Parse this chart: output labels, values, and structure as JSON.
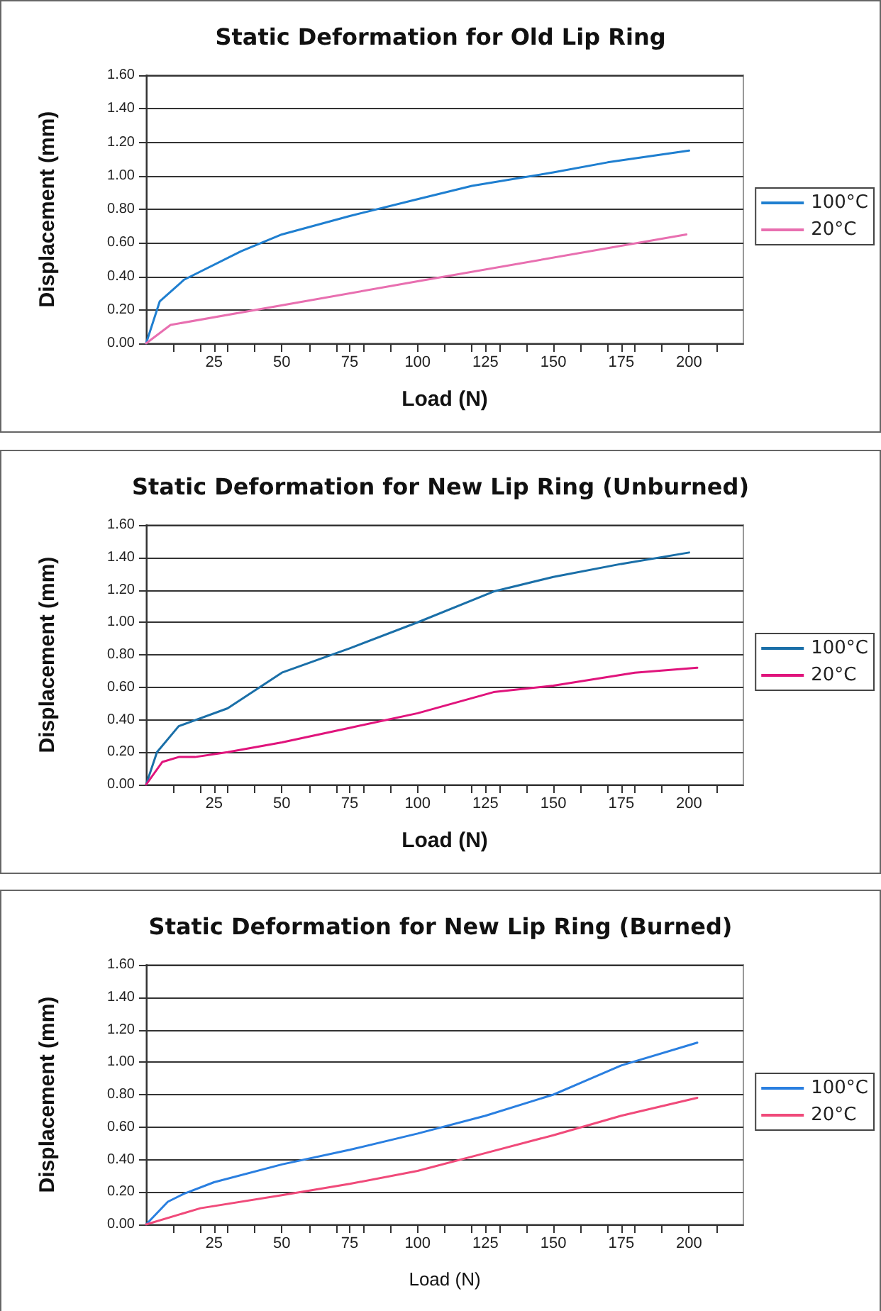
{
  "chart_data": [
    {
      "type": "line",
      "title": "Static Deformation for Old Lip Ring",
      "xlabel": "Load (N)",
      "ylabel": "Displacement (mm)",
      "xlim": [
        0,
        220
      ],
      "xticks": [
        25,
        50,
        75,
        100,
        125,
        150,
        175,
        200
      ],
      "ylim": [
        0,
        1.6
      ],
      "yticks": [
        {
          "value": 0,
          "label": "0.00"
        },
        {
          "value": 0.2,
          "label": "0.20"
        },
        {
          "value": 0.4,
          "label": "0.40"
        },
        {
          "value": 0.6,
          "label": "0.60"
        },
        {
          "value": 0.8,
          "label": "0.80"
        },
        {
          "value": 1,
          "label": "1.00"
        },
        {
          "value": 1.2,
          "label": "1.20"
        },
        {
          "value": 1.4,
          "label": "1.40"
        },
        {
          "value": 1.6,
          "label": "1.60"
        }
      ],
      "grid": "y",
      "legend": "right",
      "marker": "none",
      "line_style": "solid",
      "series": [
        {
          "name": "100°C",
          "color": "#1f7fd0",
          "x": [
            0,
            5,
            14,
            35,
            50,
            75,
            100,
            120,
            150,
            170,
            200
          ],
          "values": [
            0,
            0.25,
            0.38,
            0.55,
            0.65,
            0.76,
            0.86,
            0.94,
            1.02,
            1.08,
            1.15
          ]
        },
        {
          "name": "20°C",
          "color": "#e86fb0",
          "x": [
            0,
            9,
            100,
            199
          ],
          "values": [
            0,
            0.11,
            0.37,
            0.65
          ]
        }
      ]
    },
    {
      "type": "line",
      "title": "Static Deformation for New Lip Ring (Unburned)",
      "xlabel": "Load (N)",
      "ylabel": "Displacement (mm)",
      "xlim": [
        0,
        220
      ],
      "xticks": [
        25,
        50,
        75,
        100,
        125,
        150,
        175,
        200
      ],
      "ylim": [
        0,
        1.6
      ],
      "yticks": [
        {
          "value": 0,
          "label": "0.00"
        },
        {
          "value": 0.2,
          "label": "0.20"
        },
        {
          "value": 0.4,
          "label": "0.40"
        },
        {
          "value": 0.6,
          "label": "0.60"
        },
        {
          "value": 0.8,
          "label": "0.80"
        },
        {
          "value": 1,
          "label": "1.00"
        },
        {
          "value": 1.2,
          "label": "1.20"
        },
        {
          "value": 1.4,
          "label": "1.40"
        },
        {
          "value": 1.6,
          "label": "1.60"
        }
      ],
      "grid": "y",
      "legend": "right",
      "marker": "none",
      "line_style": "solid",
      "series": [
        {
          "name": "100°C",
          "color": "#1a6fa8",
          "x": [
            0,
            4,
            12,
            30,
            50,
            75,
            100,
            128,
            150,
            175,
            200
          ],
          "values": [
            0,
            0.2,
            0.36,
            0.47,
            0.69,
            0.84,
            1.0,
            1.19,
            1.28,
            1.36,
            1.43
          ]
        },
        {
          "name": "20°C",
          "color": "#e0147c",
          "x": [
            0,
            6,
            12,
            18,
            30,
            50,
            75,
            100,
            128,
            150,
            180,
            203
          ],
          "values": [
            0,
            0.14,
            0.17,
            0.17,
            0.2,
            0.26,
            0.35,
            0.44,
            0.57,
            0.61,
            0.69,
            0.72
          ]
        }
      ]
    },
    {
      "type": "line",
      "title": "Static Deformation for New Lip Ring (Burned)",
      "xlabel": "Load (N)",
      "ylabel": "Displacement (mm)",
      "xlim": [
        0,
        220
      ],
      "xticks": [
        25,
        50,
        75,
        100,
        125,
        150,
        175,
        200
      ],
      "ylim": [
        0,
        1.6
      ],
      "yticks": [
        {
          "value": 0,
          "label": "0.00"
        },
        {
          "value": 0.2,
          "label": "0.20"
        },
        {
          "value": 0.4,
          "label": "0.40"
        },
        {
          "value": 0.6,
          "label": "0.60"
        },
        {
          "value": 0.8,
          "label": "0.80"
        },
        {
          "value": 1,
          "label": "1.00"
        },
        {
          "value": 1.2,
          "label": "1.20"
        },
        {
          "value": 1.4,
          "label": "1.40"
        },
        {
          "value": 1.6,
          "label": "1.60"
        }
      ],
      "grid": "y",
      "legend": "right",
      "marker": "none",
      "line_style": "solid",
      "series": [
        {
          "name": "100°C",
          "color": "#2a7fe0",
          "x": [
            0,
            8,
            14,
            25,
            50,
            75,
            100,
            125,
            150,
            175,
            203
          ],
          "values": [
            0,
            0.14,
            0.19,
            0.26,
            0.37,
            0.46,
            0.56,
            0.67,
            0.8,
            0.98,
            1.12
          ]
        },
        {
          "name": "20°C",
          "color": "#f04a7a",
          "x": [
            0,
            20,
            50,
            75,
            100,
            125,
            150,
            175,
            203
          ],
          "values": [
            0,
            0.1,
            0.18,
            0.25,
            0.33,
            0.44,
            0.55,
            0.67,
            0.78
          ]
        }
      ]
    }
  ]
}
